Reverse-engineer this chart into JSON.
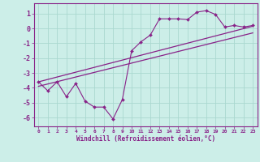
{
  "xlabel": "Windchill (Refroidissement éolien,°C)",
  "background_color": "#cceee8",
  "grid_color": "#aad8d0",
  "line_color": "#882288",
  "xlim_min": -0.5,
  "xlim_max": 23.5,
  "ylim_min": -6.6,
  "ylim_max": 1.7,
  "yticks": [
    1,
    0,
    -1,
    -2,
    -3,
    -4,
    -5,
    -6
  ],
  "xticks": [
    0,
    1,
    2,
    3,
    4,
    5,
    6,
    7,
    8,
    9,
    10,
    11,
    12,
    13,
    14,
    15,
    16,
    17,
    18,
    19,
    20,
    21,
    22,
    23
  ],
  "zigzag_x": [
    0,
    1,
    2,
    3,
    4,
    5,
    6,
    7,
    8,
    9,
    10,
    11,
    12,
    13,
    14,
    15,
    16,
    17,
    18,
    19,
    20,
    21,
    22,
    23
  ],
  "zigzag_y": [
    -3.6,
    -4.2,
    -3.6,
    -4.6,
    -3.7,
    -4.9,
    -5.3,
    -5.3,
    -6.1,
    -4.8,
    -1.5,
    -0.9,
    -0.45,
    0.65,
    0.65,
    0.65,
    0.6,
    1.1,
    1.2,
    0.95,
    0.1,
    0.2,
    0.1,
    0.2
  ],
  "line1_x": [
    0,
    23
  ],
  "line1_y": [
    -3.6,
    0.15
  ],
  "line2_x": [
    0,
    23
  ],
  "line2_y": [
    -3.9,
    -0.3
  ]
}
